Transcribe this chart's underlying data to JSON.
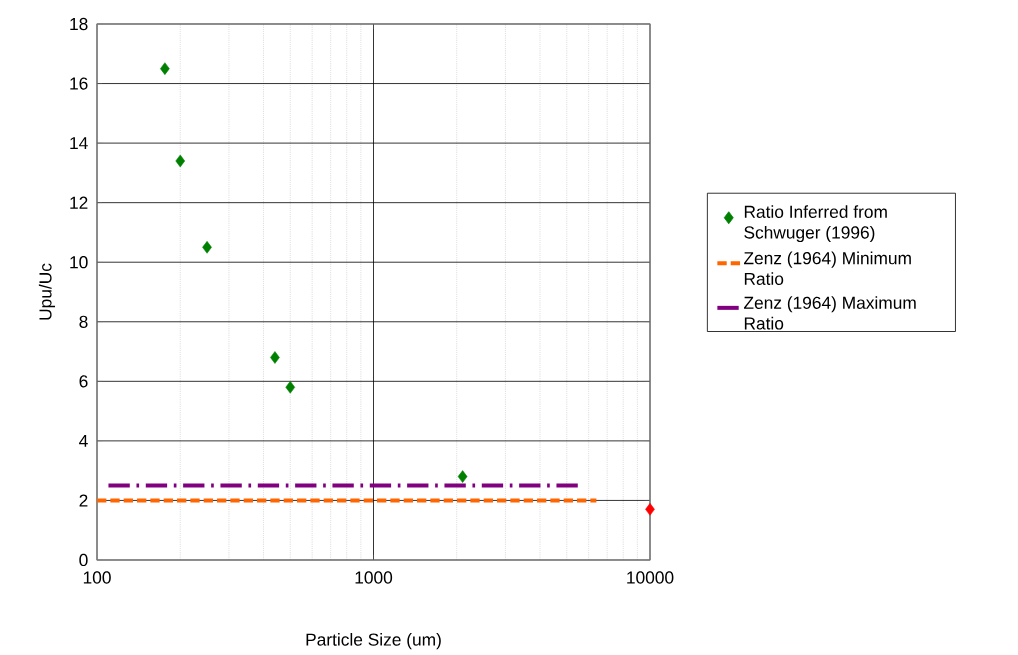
{
  "chart_data": {
    "type": "scatter",
    "xlabel": "Particle Size (um)",
    "ylabel": "Upu/Uc",
    "log": "x",
    "xlim": [
      100,
      10000
    ],
    "xticks": [
      100,
      1000,
      10000
    ],
    "ylim": [
      0,
      18
    ],
    "yticks": [
      0,
      2,
      4,
      6,
      8,
      10,
      12,
      14,
      16,
      18
    ],
    "grid": true,
    "legend": "right",
    "series": [
      {
        "name": "Ratio Inferred from Schwuger (1996)",
        "type": "scatter",
        "marker": "diamond",
        "color": "#008000",
        "x": [
          176,
          200,
          250,
          440,
          500,
          2100
        ],
        "values": [
          16.5,
          13.4,
          10.5,
          6.8,
          5.8,
          2.8
        ]
      },
      {
        "name": "Zenz (1964) Minimum Ratio",
        "type": "line",
        "marker": "none",
        "line_style": "dashed",
        "color": "#ff6600",
        "x": [
          100,
          6400
        ],
        "values": [
          2,
          2
        ]
      },
      {
        "name": "Zenz (1964) Maximum Ratio",
        "type": "line",
        "marker": "none",
        "line_style": "dashdot",
        "color": "#800080",
        "x": [
          110,
          5700
        ],
        "values": [
          2.5,
          2.5
        ]
      },
      {
        "marker": "diamond",
        "color": "#ff0000",
        "x": [
          10000
        ],
        "values": [
          1.7
        ]
      }
    ]
  }
}
